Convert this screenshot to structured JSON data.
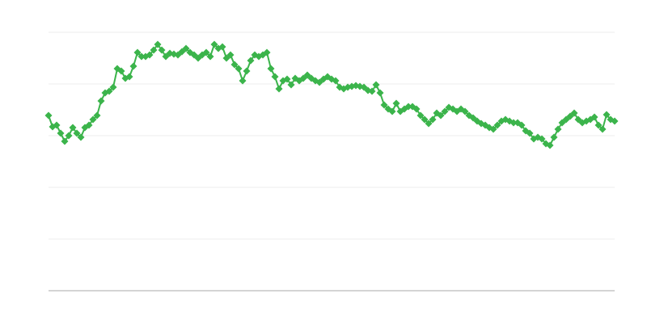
{
  "chart_data": {
    "type": "line",
    "title": "",
    "xlabel": "",
    "ylabel": "",
    "marker": "diamond",
    "grid": true,
    "xlim": [
      0,
      140
    ],
    "ylim": [
      0,
      320
    ],
    "gridlines": [
      64,
      128,
      192,
      256,
      320
    ],
    "colors": {
      "series": "#3bb44b",
      "grid": "#ececec",
      "axis": "#aaaaaa"
    },
    "series": [
      {
        "values": [
          217,
          203,
          205,
          195,
          185,
          192,
          202,
          195,
          190,
          202,
          205,
          212,
          217,
          235,
          245,
          247,
          252,
          275,
          272,
          263,
          265,
          278,
          295,
          290,
          290,
          292,
          298,
          305,
          298,
          290,
          294,
          293,
          292,
          296,
          300,
          295,
          292,
          288,
          292,
          295,
          290,
          305,
          300,
          302,
          288,
          292,
          280,
          275,
          260,
          272,
          285,
          292,
          290,
          292,
          295,
          275,
          265,
          250,
          260,
          262,
          255,
          263,
          260,
          263,
          267,
          263,
          260,
          258,
          262,
          265,
          262,
          260,
          252,
          250,
          252,
          253,
          254,
          253,
          252,
          248,
          247,
          255,
          245,
          230,
          225,
          222,
          232,
          222,
          225,
          228,
          228,
          225,
          217,
          212,
          207,
          212,
          220,
          217,
          222,
          227,
          225,
          222,
          225,
          222,
          217,
          214,
          210,
          207,
          205,
          202,
          200,
          205,
          210,
          212,
          210,
          208,
          208,
          205,
          198,
          195,
          188,
          190,
          188,
          182,
          180,
          190,
          200,
          208,
          212,
          216,
          220,
          212,
          208,
          210,
          212,
          215,
          205,
          200,
          218,
          212,
          210
        ]
      }
    ]
  }
}
